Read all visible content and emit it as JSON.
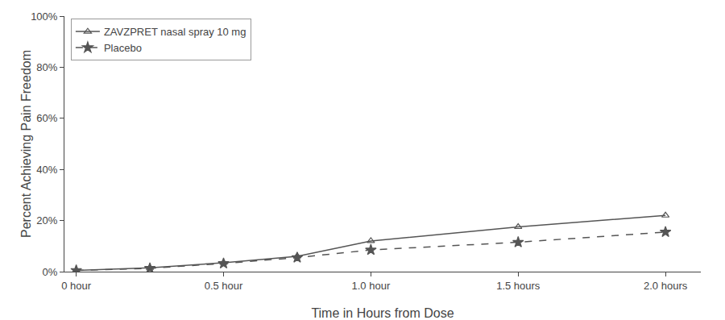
{
  "chart_data": {
    "type": "line",
    "x_label": "Time in Hours from Dose",
    "y_label": "Percent Achieving Pain Freedom",
    "x": [
      0,
      0.25,
      0.5,
      0.75,
      1.0,
      1.5,
      2.0
    ],
    "series": [
      {
        "name": "ZAVZPRET nasal spray 10 mg",
        "color": "#555555",
        "marker": "triangle",
        "line_style": "solid",
        "values": [
          0.005,
          0.015,
          0.035,
          0.06,
          0.12,
          0.175,
          0.22
        ]
      },
      {
        "name": "Placebo",
        "color": "#555555",
        "marker": "star",
        "line_style": "dashed",
        "values": [
          0.005,
          0.013,
          0.032,
          0.055,
          0.085,
          0.115,
          0.155
        ]
      }
    ],
    "xlim": [
      -0.04,
      2.12
    ],
    "xticks": [
      {
        "value": 0,
        "label": "0 hour"
      },
      {
        "value": 0.5,
        "label": "0.5 hour"
      },
      {
        "value": 1.0,
        "label": "1.0 hour"
      },
      {
        "value": 1.5,
        "label": "1.5 hours"
      },
      {
        "value": 2.0,
        "label": "2.0 hours"
      }
    ],
    "ylim": [
      0,
      1.0
    ],
    "yticks": [
      {
        "value": 0,
        "label": "0%"
      },
      {
        "value": 0.2,
        "label": "20%"
      },
      {
        "value": 0.4,
        "label": "40%"
      },
      {
        "value": 0.6,
        "label": "60%"
      },
      {
        "value": 0.8,
        "label": "80%"
      },
      {
        "value": 1.0,
        "label": "100%"
      }
    ],
    "grid": false,
    "legend": "upper left"
  }
}
